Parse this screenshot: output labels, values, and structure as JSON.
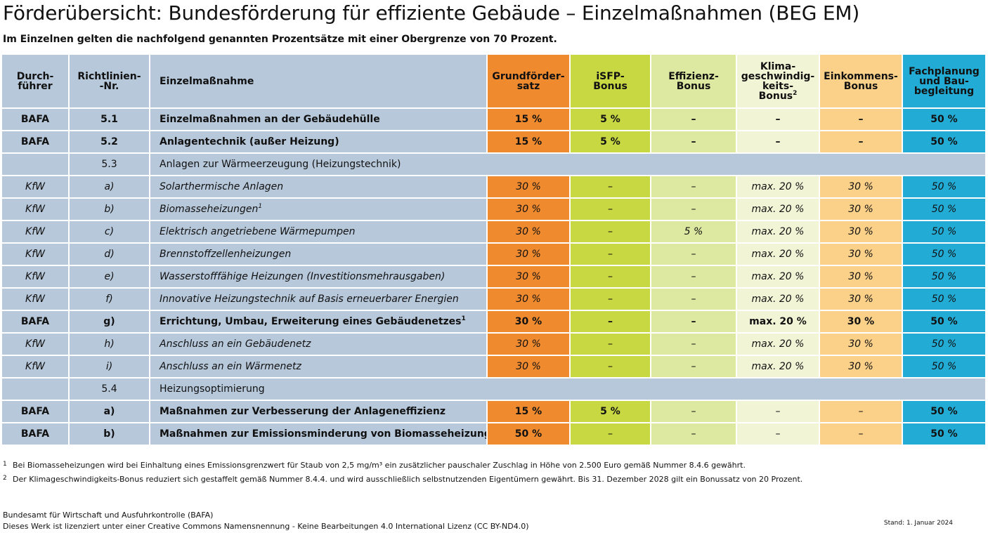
{
  "title": "Förderübersicht: Bundesförderung für effiziente Gebäude – Einzelmaßnahmen (BEG EM)",
  "subtitle": "Im Einzelnen gelten die nachfolgend genannten Prozentsätze mit einer Obergrenze von 70 Prozent.",
  "headers": {
    "durchfuehrer": "Durch- führer",
    "richtlinie": "Richtlinien- -Nr.",
    "massnahme": "Einzelmaßnahme",
    "grund": "Grundförder- satz",
    "isfp": "iSFP- Bonus",
    "effizienz": "Effizienz- Bonus",
    "klima": "Klima- geschwindig- keits- Bonus",
    "klima_sup": "2",
    "einkommen": "Einkommens- Bonus",
    "fach": "Fachplanung und Bau- begleitung"
  },
  "colors": {
    "base": "#b7c8db",
    "grund": "#f08a2f",
    "isfp": "#c8d842",
    "effizienz": "#dde8a0",
    "klima": "#f2f4d6",
    "einkommen": "#fbd189",
    "fach": "#22acd5"
  },
  "rows": [
    {
      "type": "data",
      "style": "bold",
      "d": "BAFA",
      "nr": "5.1",
      "name": "Einzelmaßnahmen an der Gebäudehülle",
      "sup": "",
      "grund": "15 %",
      "isfp": "5 %",
      "eff": "–",
      "klima": "–",
      "einko": "–",
      "fach": "50 %"
    },
    {
      "type": "data",
      "style": "bold",
      "d": "BAFA",
      "nr": "5.2",
      "name": "Anlagentechnik (außer Heizung)",
      "sup": "",
      "grund": "15 %",
      "isfp": "5 %",
      "eff": "–",
      "klima": "–",
      "einko": "–",
      "fach": "50 %"
    },
    {
      "type": "section",
      "nr": "5.3",
      "name": "Anlagen zur Wärmeerzeugung (Heizungstechnik)"
    },
    {
      "type": "data",
      "style": "italic",
      "d": "KfW",
      "nr": "a)",
      "name": "Solarthermische Anlagen",
      "sup": "",
      "grund": "30 %",
      "isfp": "–",
      "eff": "–",
      "klima": "max. 20 %",
      "einko": "30 %",
      "fach": "50 %"
    },
    {
      "type": "data",
      "style": "italic",
      "d": "KfW",
      "nr": "b)",
      "name": "Biomasseheizungen",
      "sup": "1",
      "grund": "30 %",
      "isfp": "–",
      "eff": "–",
      "klima": "max. 20 %",
      "einko": "30 %",
      "fach": "50 %"
    },
    {
      "type": "data",
      "style": "italic",
      "d": "KfW",
      "nr": "c)",
      "name": "Elektrisch angetriebene Wärmepumpen",
      "sup": "",
      "grund": "30 %",
      "isfp": "–",
      "eff": "5 %",
      "klima": "max. 20 %",
      "einko": "30 %",
      "fach": "50 %"
    },
    {
      "type": "data",
      "style": "italic",
      "d": "KfW",
      "nr": "d)",
      "name": "Brennstoffzellenheizungen",
      "sup": "",
      "grund": "30 %",
      "isfp": "–",
      "eff": "–",
      "klima": "max. 20 %",
      "einko": "30 %",
      "fach": "50 %"
    },
    {
      "type": "data",
      "style": "italic",
      "d": "KfW",
      "nr": "e)",
      "name": "Wasserstofffähige Heizungen (Investitionsmehrausgaben)",
      "sup": "",
      "grund": "30 %",
      "isfp": "–",
      "eff": "–",
      "klima": "max. 20 %",
      "einko": "30 %",
      "fach": "50 %"
    },
    {
      "type": "data",
      "style": "italic",
      "d": "KfW",
      "nr": "f)",
      "name": "Innovative Heizungstechnik auf Basis erneuerbarer Energien",
      "sup": "",
      "grund": "30 %",
      "isfp": "–",
      "eff": "–",
      "klima": "max. 20 %",
      "einko": "30 %",
      "fach": "50 %"
    },
    {
      "type": "data",
      "style": "bold",
      "d": "BAFA",
      "nr": "g)",
      "name": "Errichtung, Umbau, Erweiterung eines Gebäudenetzes",
      "sup": "1",
      "grund": "30 %",
      "isfp": "–",
      "eff": "–",
      "klima": "max. 20 %",
      "einko": "30 %",
      "fach": "50 %"
    },
    {
      "type": "data",
      "style": "italic",
      "d": "KfW",
      "nr": "h)",
      "name": "Anschluss an ein Gebäudenetz",
      "sup": "",
      "grund": "30 %",
      "isfp": "–",
      "eff": "–",
      "klima": "max. 20 %",
      "einko": "30 %",
      "fach": "50 %"
    },
    {
      "type": "data",
      "style": "italic",
      "d": "KfW",
      "nr": "i)",
      "name": "Anschluss an ein Wärmenetz",
      "sup": "",
      "grund": "30 %",
      "isfp": "–",
      "eff": "–",
      "klima": "max. 20 %",
      "einko": "30 %",
      "fach": "50 %"
    },
    {
      "type": "section",
      "nr": "5.4",
      "name": "Heizungsoptimierung"
    },
    {
      "type": "data",
      "style": "bold",
      "d": "BAFA",
      "nr": "a)",
      "name": "Maßnahmen zur Verbesserung der Anlageneffizienz",
      "sup": "",
      "grund": "15 %",
      "isfp": "5 %",
      "eff": "–",
      "klima": "–",
      "einko": "–",
      "fach": "50 %"
    },
    {
      "type": "data",
      "style": "boldmix",
      "d": "BAFA",
      "nr": "b)",
      "name": "Maßnahmen zur Emissionsminderung von Biomasseheizungen",
      "sup": "",
      "grund": "50 %",
      "isfp": "–",
      "eff": "–",
      "klima": "–",
      "einko": "–",
      "fach": "50 %"
    }
  ],
  "footnotes": [
    {
      "mark": "1",
      "text": "Bei Biomasseheizungen wird bei Einhaltung eines Emissionsgrenzwert für Staub von 2,5 mg/m³ ein zusätzlicher pauschaler Zuschlag in Höhe von 2.500 Euro gemäß Nummer 8.4.6 gewährt."
    },
    {
      "mark": "2",
      "text": "Der Klimageschwindigkeits-Bonus reduziert sich gestaffelt gemäß Nummer 8.4.4. und wird ausschließlich selbstnutzenden Eigentümern gewährt. Bis 31. Dezember 2028 gilt ein Bonussatz von 20 Prozent."
    }
  ],
  "source_line1": "Bundesamt für Wirtschaft und Ausfuhrkontrolle (BAFA)",
  "source_line2": "Dieses Werk ist lizenziert unter einer Creative Commons Namensnennung - Keine Bearbeitungen 4.0 International Lizenz (CC BY-ND4.0)",
  "stand": "Stand: 1. Januar 2024"
}
